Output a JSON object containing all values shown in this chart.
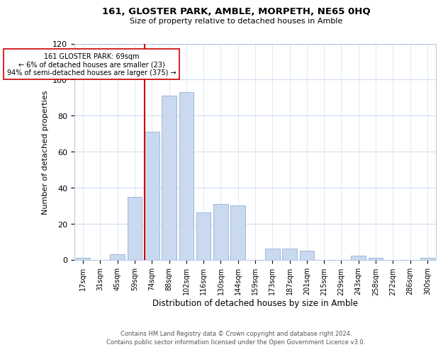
{
  "title": "161, GLOSTER PARK, AMBLE, MORPETH, NE65 0HQ",
  "subtitle": "Size of property relative to detached houses in Amble",
  "xlabel": "Distribution of detached houses by size in Amble",
  "ylabel": "Number of detached properties",
  "bar_labels": [
    "17sqm",
    "31sqm",
    "45sqm",
    "59sqm",
    "74sqm",
    "88sqm",
    "102sqm",
    "116sqm",
    "130sqm",
    "144sqm",
    "159sqm",
    "173sqm",
    "187sqm",
    "201sqm",
    "215sqm",
    "229sqm",
    "243sqm",
    "258sqm",
    "272sqm",
    "286sqm",
    "300sqm"
  ],
  "bar_heights": [
    1,
    0,
    3,
    35,
    71,
    91,
    93,
    26,
    31,
    30,
    0,
    6,
    6,
    5,
    0,
    0,
    2,
    1,
    0,
    0,
    1
  ],
  "bar_color": "#c9d9f0",
  "bar_edge_color": "#a0b8d8",
  "vline_x_idx": 4,
  "vline_color": "#cc0000",
  "annotation_text": "161 GLOSTER PARK: 69sqm\n← 6% of detached houses are smaller (23)\n94% of semi-detached houses are larger (375) →",
  "annotation_box_color": "#ffffff",
  "annotation_box_edge_color": "#cc0000",
  "ylim": [
    0,
    120
  ],
  "yticks": [
    0,
    20,
    40,
    60,
    80,
    100,
    120
  ],
  "footer_line1": "Contains HM Land Registry data © Crown copyright and database right 2024.",
  "footer_line2": "Contains public sector information licensed under the Open Government Licence v3.0.",
  "bg_color": "#ffffff",
  "grid_color": "#d0dff0"
}
